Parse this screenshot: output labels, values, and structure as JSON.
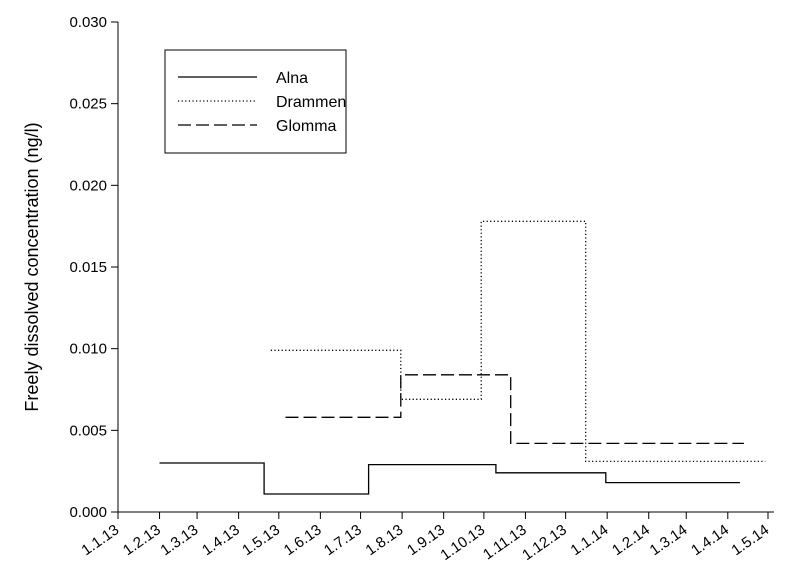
{
  "chart_data": {
    "type": "line",
    "step": true,
    "title": "",
    "xlabel": "",
    "ylabel": "Freely dissolved concentration (ng/l)",
    "x_ticks": [
      "1.1.13",
      "1.2.13",
      "1.3.13",
      "1.4.13",
      "1.5.13",
      "1.6.13",
      "1.7.13",
      "1.8.13",
      "1.9.13",
      "1.10.13",
      "1.11.13",
      "1.12.13",
      "1.1.14",
      "1.2.14",
      "1.3.14",
      "1.4.14",
      "1.5.14"
    ],
    "ylim": [
      0,
      0.03
    ],
    "y_ticks": [
      "0.000",
      "0.005",
      "0.010",
      "0.015",
      "0.020",
      "0.025",
      "0.030"
    ],
    "grid": false,
    "legend_position": "top-left",
    "series": [
      {
        "name": "Alna",
        "dash": "solid",
        "x": [
          "2013-02-01",
          "2013-04-20",
          "2013-04-20",
          "2013-07-07",
          "2013-07-07",
          "2013-10-10",
          "2013-10-10",
          "2013-12-31",
          "2013-12-31",
          "2014-04-10"
        ],
        "y": [
          0.003,
          0.003,
          0.0011,
          0.0011,
          0.0029,
          0.0029,
          0.0024,
          0.0024,
          0.0018,
          0.0018
        ]
      },
      {
        "name": "Drammen",
        "dash": "dotted",
        "x": [
          "2013-04-25",
          "2013-07-31",
          "2013-07-31",
          "2013-09-29",
          "2013-09-29",
          "2013-12-16",
          "2013-12-16",
          "2014-04-29"
        ],
        "y": [
          0.0099,
          0.0099,
          0.0069,
          0.0069,
          0.0178,
          0.0178,
          0.0031,
          0.0031
        ]
      },
      {
        "name": "Glomma",
        "dash": "dashed",
        "x": [
          "2013-05-06",
          "2013-07-31",
          "2013-07-31",
          "2013-10-21",
          "2013-10-21",
          "2014-04-13"
        ],
        "y": [
          0.0058,
          0.0058,
          0.0084,
          0.0084,
          0.0042,
          0.0042
        ]
      }
    ]
  }
}
